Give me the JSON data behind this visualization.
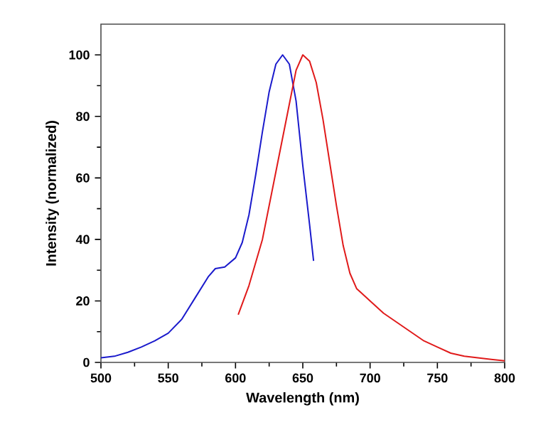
{
  "chart_data": {
    "type": "line",
    "xlabel": "Wavelength (nm)",
    "ylabel": "Intensity (normalized)",
    "xlim": [
      500,
      800
    ],
    "ylim": [
      0,
      110
    ],
    "xticks": [
      500,
      550,
      600,
      650,
      700,
      750,
      800
    ],
    "yticks": [
      0,
      20,
      40,
      60,
      80,
      100
    ],
    "grid": false,
    "marker": "none",
    "line_style": "solid",
    "series": [
      {
        "color": "#1a1acc",
        "x": [
          500,
          510,
          520,
          530,
          540,
          550,
          560,
          570,
          580,
          585,
          592,
          600,
          605,
          610,
          615,
          620,
          625,
          630,
          635,
          640,
          645,
          650,
          655,
          658
        ],
        "values": [
          1.5,
          2,
          3.3,
          5,
          7,
          9.5,
          14,
          21,
          28,
          30.5,
          31,
          34,
          39,
          48,
          61,
          75,
          88,
          97,
          100,
          97,
          85,
          64,
          45,
          33
        ]
      },
      {
        "color": "#e01a1a",
        "x": [
          602,
          610,
          620,
          630,
          640,
          645,
          650,
          655,
          660,
          665,
          670,
          675,
          680,
          685,
          690,
          700,
          710,
          720,
          730,
          740,
          750,
          760,
          770,
          780,
          790,
          800
        ],
        "values": [
          15.5,
          25,
          40,
          62,
          84,
          95,
          100,
          98,
          91,
          79,
          65,
          51,
          38,
          29,
          24,
          20,
          16,
          13,
          10,
          7,
          5,
          3,
          2,
          1.5,
          1,
          0.5
        ]
      }
    ]
  }
}
